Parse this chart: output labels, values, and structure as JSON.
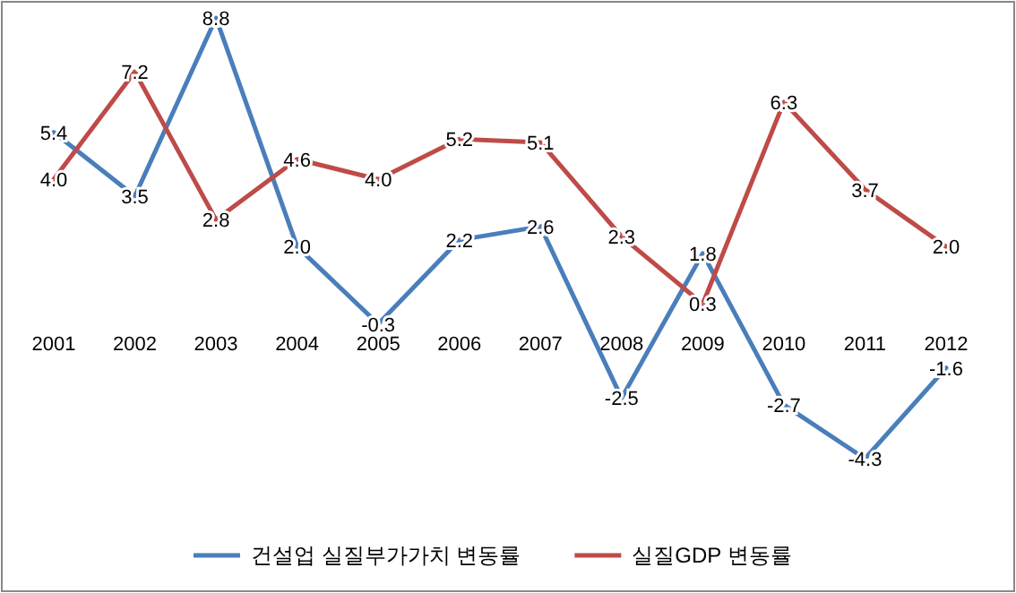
{
  "chart_data": {
    "type": "line",
    "relative": false,
    "categories": [
      "2001",
      "2002",
      "2003",
      "2004",
      "2005",
      "2006",
      "2007",
      "2008",
      "2009",
      "2010",
      "2011",
      "2012"
    ],
    "series": [
      {
        "name": "건설업 실질부가가치 변동률",
        "color": "#4a7ebb",
        "values": [
          5.4,
          3.5,
          8.8,
          2.0,
          -0.3,
          2.2,
          2.6,
          -2.5,
          1.8,
          -2.7,
          -4.3,
          -1.6
        ],
        "value_labels": [
          "5.4",
          "3.5",
          "8.8",
          "2.0",
          "-0.3",
          "2.2",
          "2.6",
          "-2.5",
          "1.8",
          "-2.7",
          "-4.3",
          "-1.6"
        ]
      },
      {
        "name": "실질GDP 변동률",
        "color": "#be4b48",
        "values": [
          4.0,
          7.2,
          2.8,
          4.6,
          4.0,
          5.2,
          5.1,
          2.3,
          0.3,
          6.3,
          3.7,
          2.0
        ],
        "value_labels": [
          "4.0",
          "7.2",
          "2.8",
          "4.6",
          "4.0",
          "5.2",
          "5.1",
          "2.3",
          "0.3",
          "6.3",
          "3.7",
          "2.0"
        ]
      }
    ],
    "legend": "bottom"
  }
}
